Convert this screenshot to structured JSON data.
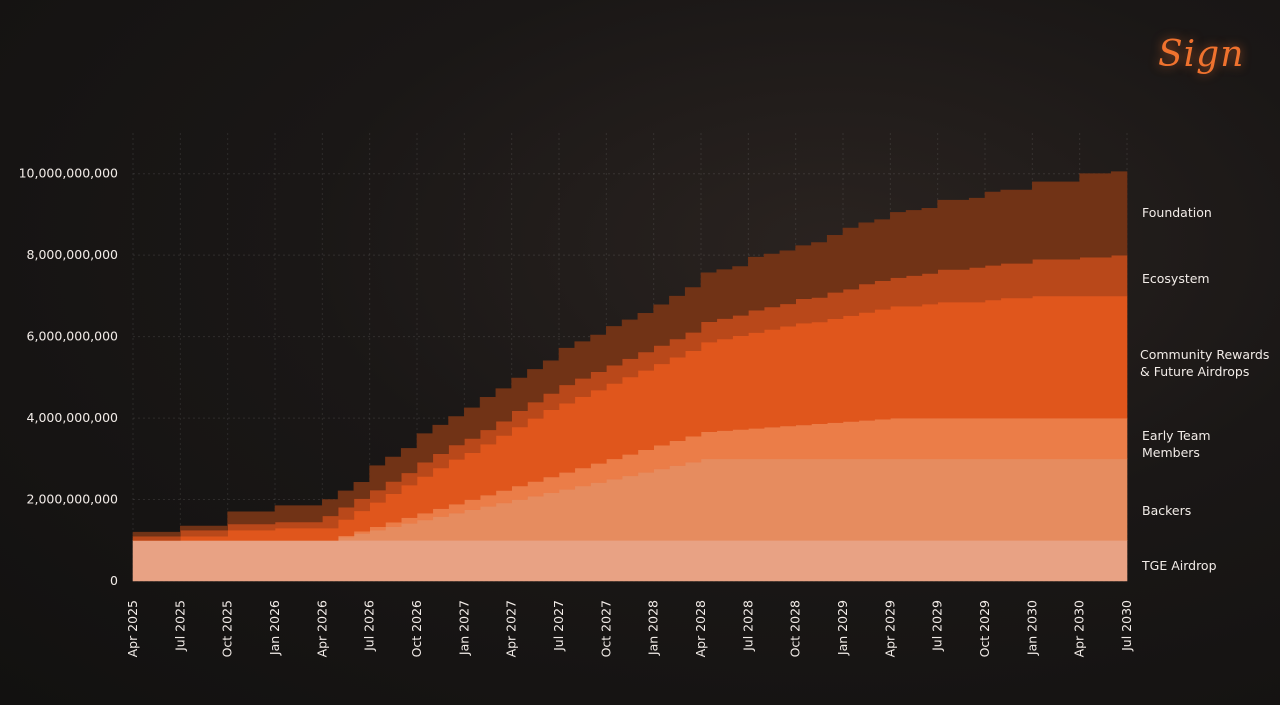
{
  "logo_text": "Sign",
  "chart_data": {
    "type": "area",
    "stacked": true,
    "step": true,
    "grid": true,
    "ylim": [
      0,
      11000000000
    ],
    "y_ticks": [
      0,
      2000000000,
      4000000000,
      6000000000,
      8000000000,
      10000000000
    ],
    "y_tick_labels": [
      "0",
      "2,000,000,000",
      "4,000,000,000",
      "6,000,000,000",
      "8,000,000,000",
      "10,000,000,000"
    ],
    "x_tick_labels": [
      "Apr 2025",
      "Jul 2025",
      "Oct 2025",
      "Jan 2026",
      "Apr 2026",
      "Jul 2026",
      "Oct 2026",
      "Jan 2027",
      "Apr 2027",
      "Jul 2027",
      "Oct 2027",
      "Jan 2028",
      "Apr 2028",
      "Jul 2028",
      "Oct 2028",
      "Jan 2029",
      "Apr 2029",
      "Jul 2029",
      "Oct 2029",
      "Jan 2030",
      "Apr 2030",
      "Jul 2030"
    ],
    "x": [
      "Apr 2025",
      "May 2025",
      "Jun 2025",
      "Jul 2025",
      "Aug 2025",
      "Sep 2025",
      "Oct 2025",
      "Nov 2025",
      "Dec 2025",
      "Jan 2026",
      "Feb 2026",
      "Mar 2026",
      "Apr 2026",
      "May 2026",
      "Jun 2026",
      "Jul 2026",
      "Aug 2026",
      "Sep 2026",
      "Oct 2026",
      "Nov 2026",
      "Dec 2026",
      "Jan 2027",
      "Feb 2027",
      "Mar 2027",
      "Apr 2027",
      "May 2027",
      "Jun 2027",
      "Jul 2027",
      "Aug 2027",
      "Sep 2027",
      "Oct 2027",
      "Nov 2027",
      "Dec 2027",
      "Jan 2028",
      "Feb 2028",
      "Mar 2028",
      "Apr 2028",
      "May 2028",
      "Jun 2028",
      "Jul 2028",
      "Aug 2028",
      "Sep 2028",
      "Oct 2028",
      "Nov 2028",
      "Dec 2028",
      "Jan 2029",
      "Feb 2029",
      "Mar 2029",
      "Apr 2029",
      "May 2029",
      "Jun 2029",
      "Jul 2029",
      "Aug 2029",
      "Sep 2029",
      "Oct 2029",
      "Nov 2029",
      "Dec 2029",
      "Jan 2030",
      "Feb 2030",
      "Mar 2030",
      "Apr 2030",
      "May 2030",
      "Jun 2030"
    ],
    "series": [
      {
        "name": "TGE Airdrop",
        "color": "#e8a284",
        "values": [
          1000000000,
          1000000000,
          1000000000,
          1000000000,
          1000000000,
          1000000000,
          1000000000,
          1000000000,
          1000000000,
          1000000000,
          1000000000,
          1000000000,
          1000000000,
          1000000000,
          1000000000,
          1000000000,
          1000000000,
          1000000000,
          1000000000,
          1000000000,
          1000000000,
          1000000000,
          1000000000,
          1000000000,
          1000000000,
          1000000000,
          1000000000,
          1000000000,
          1000000000,
          1000000000,
          1000000000,
          1000000000,
          1000000000,
          1000000000,
          1000000000,
          1000000000,
          1000000000,
          1000000000,
          1000000000,
          1000000000,
          1000000000,
          1000000000,
          1000000000,
          1000000000,
          1000000000,
          1000000000,
          1000000000,
          1000000000,
          1000000000,
          1000000000,
          1000000000,
          1000000000,
          1000000000,
          1000000000,
          1000000000,
          1000000000,
          1000000000,
          1000000000,
          1000000000,
          1000000000,
          1000000000,
          1000000000,
          1000000000
        ]
      },
      {
        "name": "Backers",
        "color": "#e68c5f",
        "values": [
          0,
          0,
          0,
          0,
          0,
          0,
          0,
          0,
          0,
          0,
          0,
          0,
          0,
          83000000,
          167000000,
          250000000,
          333000000,
          417000000,
          500000000,
          583000000,
          667000000,
          750000000,
          833000000,
          917000000,
          1000000000,
          1083000000,
          1167000000,
          1250000000,
          1333000000,
          1417000000,
          1500000000,
          1583000000,
          1667000000,
          1750000000,
          1833000000,
          1917000000,
          2000000000,
          2000000000,
          2000000000,
          2000000000,
          2000000000,
          2000000000,
          2000000000,
          2000000000,
          2000000000,
          2000000000,
          2000000000,
          2000000000,
          2000000000,
          2000000000,
          2000000000,
          2000000000,
          2000000000,
          2000000000,
          2000000000,
          2000000000,
          2000000000,
          2000000000,
          2000000000,
          2000000000,
          2000000000,
          2000000000,
          2000000000
        ]
      },
      {
        "name": "Early Team Members",
        "color": "#eb7d48",
        "values": [
          0,
          0,
          0,
          0,
          0,
          0,
          0,
          0,
          0,
          0,
          0,
          0,
          0,
          28000000,
          56000000,
          83000000,
          111000000,
          139000000,
          167000000,
          194000000,
          222000000,
          250000000,
          278000000,
          306000000,
          333000000,
          361000000,
          389000000,
          417000000,
          444000000,
          472000000,
          500000000,
          528000000,
          556000000,
          583000000,
          611000000,
          639000000,
          667000000,
          694000000,
          722000000,
          750000000,
          778000000,
          806000000,
          833000000,
          861000000,
          889000000,
          917000000,
          944000000,
          972000000,
          1000000000,
          1000000000,
          1000000000,
          1000000000,
          1000000000,
          1000000000,
          1000000000,
          1000000000,
          1000000000,
          1000000000,
          1000000000,
          1000000000,
          1000000000,
          1000000000,
          1000000000
        ]
      },
      {
        "name": "Community Rewards & Future Airdrops",
        "color": "#e0561c",
        "values": [
          0,
          0,
          0,
          100000000,
          100000000,
          100000000,
          250000000,
          250000000,
          250000000,
          300000000,
          300000000,
          300000000,
          300000000,
          400000000,
          500000000,
          600000000,
          700000000,
          800000000,
          900000000,
          1000000000,
          1100000000,
          1150000000,
          1250000000,
          1350000000,
          1450000000,
          1550000000,
          1650000000,
          1700000000,
          1750000000,
          1800000000,
          1850000000,
          1900000000,
          1950000000,
          2000000000,
          2050000000,
          2100000000,
          2200000000,
          2250000000,
          2300000000,
          2350000000,
          2400000000,
          2450000000,
          2500000000,
          2500000000,
          2550000000,
          2600000000,
          2650000000,
          2700000000,
          2750000000,
          2750000000,
          2800000000,
          2850000000,
          2850000000,
          2850000000,
          2900000000,
          2950000000,
          2950000000,
          3000000000,
          3000000000,
          3000000000,
          3000000000,
          3000000000,
          3000000000
        ]
      },
      {
        "name": "Ecosystem",
        "color": "#b9481a",
        "values": [
          100000000,
          100000000,
          100000000,
          150000000,
          150000000,
          150000000,
          150000000,
          150000000,
          150000000,
          150000000,
          150000000,
          150000000,
          300000000,
          300000000,
          300000000,
          300000000,
          300000000,
          300000000,
          350000000,
          350000000,
          350000000,
          350000000,
          350000000,
          350000000,
          400000000,
          400000000,
          400000000,
          450000000,
          450000000,
          450000000,
          450000000,
          450000000,
          450000000,
          450000000,
          450000000,
          450000000,
          500000000,
          500000000,
          500000000,
          550000000,
          550000000,
          550000000,
          600000000,
          600000000,
          650000000,
          650000000,
          700000000,
          700000000,
          700000000,
          750000000,
          750000000,
          800000000,
          800000000,
          850000000,
          850000000,
          850000000,
          850000000,
          900000000,
          900000000,
          900000000,
          950000000,
          950000000,
          1000000000
        ]
      },
      {
        "name": "Foundation",
        "color": "#713316",
        "values": [
          100000000,
          100000000,
          100000000,
          100000000,
          100000000,
          100000000,
          300000000,
          300000000,
          300000000,
          400000000,
          400000000,
          400000000,
          400000000,
          400000000,
          400000000,
          600000000,
          600000000,
          600000000,
          700000000,
          700000000,
          700000000,
          750000000,
          800000000,
          800000000,
          800000000,
          800000000,
          800000000,
          900000000,
          900000000,
          900000000,
          950000000,
          950000000,
          950000000,
          1000000000,
          1050000000,
          1100000000,
          1200000000,
          1200000000,
          1200000000,
          1300000000,
          1300000000,
          1300000000,
          1300000000,
          1350000000,
          1400000000,
          1500000000,
          1500000000,
          1500000000,
          1600000000,
          1600000000,
          1600000000,
          1700000000,
          1700000000,
          1700000000,
          1800000000,
          1800000000,
          1800000000,
          1900000000,
          1900000000,
          1900000000,
          2050000000,
          2050000000,
          2050000000
        ]
      }
    ]
  }
}
